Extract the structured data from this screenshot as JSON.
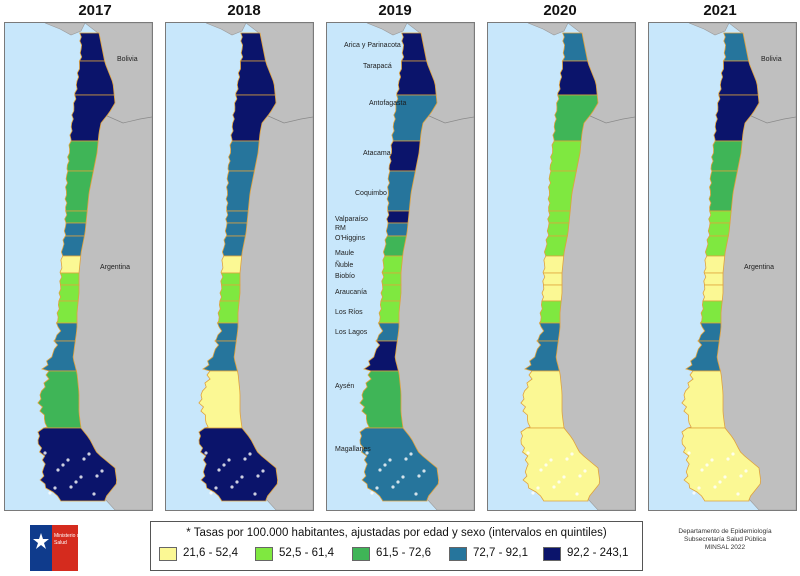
{
  "years": [
    "2017",
    "2018",
    "2019",
    "2020",
    "2021"
  ],
  "colors": {
    "q1": "#fbf894",
    "q2": "#7fe840",
    "q3": "#3fb557",
    "q4": "#26759c",
    "q5": "#0b146b",
    "sea": "#c8e7fb",
    "land": "#bfbfbf",
    "border": "#e0a23c"
  },
  "quintile_color_keys": [
    "q1",
    "q2",
    "q3",
    "q4",
    "q5"
  ],
  "labels": {
    "bolivia": "Bolivia",
    "argentina": "Argentina"
  },
  "regions": [
    {
      "name": "Arica y Parinacota"
    },
    {
      "name": "Tarapacá"
    },
    {
      "name": "Antofagasta"
    },
    {
      "name": "Atacama"
    },
    {
      "name": "Coquimbo"
    },
    {
      "name": "Valparaíso"
    },
    {
      "name": "RM"
    },
    {
      "name": "O'Higgins"
    },
    {
      "name": "Maule"
    },
    {
      "name": "Ñuble"
    },
    {
      "name": "Biobío"
    },
    {
      "name": "Araucanía"
    },
    {
      "name": "Los Ríos"
    },
    {
      "name": "Los Lagos"
    },
    {
      "name": "Aysén"
    },
    {
      "name": "Magallanes"
    }
  ],
  "region_quintiles": {
    "2017": [
      5,
      5,
      5,
      3,
      3,
      3,
      4,
      4,
      1,
      2,
      2,
      2,
      4,
      4,
      3,
      5
    ],
    "2018": [
      5,
      5,
      5,
      4,
      4,
      4,
      4,
      4,
      1,
      2,
      2,
      2,
      4,
      4,
      1,
      5
    ],
    "2019": [
      5,
      5,
      4,
      5,
      4,
      5,
      4,
      3,
      2,
      2,
      2,
      2,
      4,
      5,
      3,
      4
    ],
    "2020": [
      4,
      5,
      3,
      2,
      2,
      2,
      2,
      2,
      1,
      1,
      1,
      2,
      4,
      4,
      1,
      1
    ],
    "2021": [
      4,
      5,
      5,
      3,
      3,
      2,
      2,
      2,
      1,
      1,
      1,
      2,
      4,
      4,
      1,
      1
    ]
  },
  "legend": {
    "title": "* Tasas por 100.000 habitantes, ajustadas por edad y sexo (intervalos en quintiles)",
    "items": [
      {
        "label": "21,6 - 52,4",
        "color": "#fbf894"
      },
      {
        "label": "52,5 - 61,4",
        "color": "#7fe840"
      },
      {
        "label": "61,5 - 72,6",
        "color": "#3fb557"
      },
      {
        "label": "72,7 - 92,1",
        "color": "#26759c"
      },
      {
        "label": "92,2 - 243,1",
        "color": "#0b146b"
      }
    ]
  },
  "logo": {
    "text_line1": "Ministerio de",
    "text_line2": "Salud",
    "brand_color": "#d52b1e",
    "blue": "#0f3b8c"
  },
  "department": {
    "line1": "Departamento de Epidemiología",
    "line2": "Subsecretaría Salud Pública",
    "line3": "MINSAL 2022"
  }
}
